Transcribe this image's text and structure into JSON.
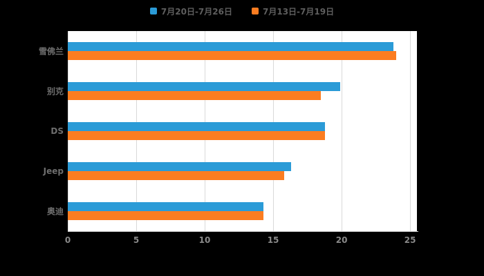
{
  "chart_data": {
    "type": "bar",
    "orientation": "horizontal",
    "title": "",
    "categories": [
      "雪佛兰",
      "别克",
      "DS",
      "Jeep",
      "奥迪"
    ],
    "series": [
      {
        "name": "7月20日-7月26日",
        "color": "#2B9BD7",
        "values": [
          23.8,
          19.9,
          18.8,
          16.3,
          14.3
        ]
      },
      {
        "name": "7月13日-7月19日",
        "color": "#FB7D21",
        "values": [
          24.0,
          18.5,
          18.8,
          15.8,
          14.3
        ]
      }
    ],
    "x_ticks": [
      0,
      5,
      10,
      15,
      20,
      25
    ],
    "x_max": 25.5,
    "xlabel": "",
    "ylabel": "",
    "legend_position": "top",
    "grid": true,
    "colors": {
      "background": "#000000",
      "plot_background": "#ffffff",
      "grid_line": "#d9d9d9",
      "axis_text": "#8a8a8a",
      "label_text": "#6e6e6e"
    }
  }
}
